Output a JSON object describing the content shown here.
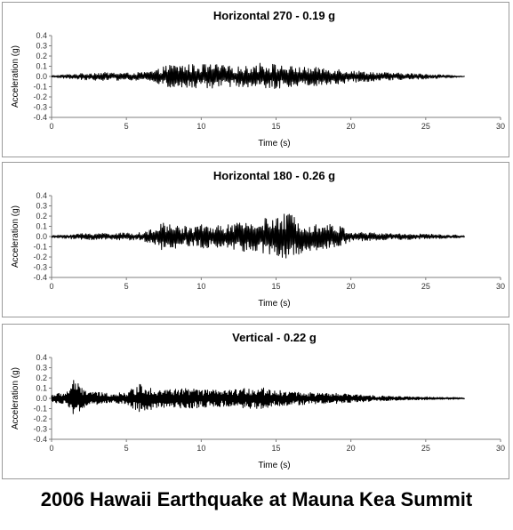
{
  "main_title": "2006 Hawaii Earthquake at Mauna Kea Summit",
  "colors": {
    "trace": "#000000",
    "axis": "#7f7f7f",
    "frame": "#9a9a9a"
  },
  "chart_data": [
    {
      "type": "line",
      "title": "Horizontal 270 - 0.19 g",
      "xlabel": "Time (s)",
      "ylabel": "Acceleration (g)",
      "xlim": [
        0,
        30
      ],
      "ylim": [
        -0.4,
        0.4
      ],
      "xticks": [
        "0",
        "5",
        "10",
        "15",
        "20",
        "25",
        "30"
      ],
      "yticks": [
        "0.4",
        "0.3",
        "0.2",
        "0.1",
        "0.0",
        "-0.1",
        "-0.2",
        "-0.3",
        "-0.4"
      ],
      "grid": false,
      "duration_s": 27.6,
      "peak_g": 0.19,
      "envelope": [
        [
          0,
          0.01
        ],
        [
          1,
          0.02
        ],
        [
          2,
          0.03
        ],
        [
          3,
          0.04
        ],
        [
          4,
          0.04
        ],
        [
          5,
          0.035
        ],
        [
          6,
          0.04
        ],
        [
          7,
          0.06
        ],
        [
          7.5,
          0.1
        ],
        [
          8,
          0.12
        ],
        [
          9,
          0.12
        ],
        [
          10,
          0.12
        ],
        [
          11,
          0.12
        ],
        [
          12,
          0.1
        ],
        [
          13,
          0.1
        ],
        [
          14,
          0.14
        ],
        [
          15,
          0.12
        ],
        [
          16,
          0.1
        ],
        [
          17,
          0.09
        ],
        [
          18,
          0.09
        ],
        [
          19,
          0.08
        ],
        [
          20,
          0.06
        ],
        [
          21,
          0.05
        ],
        [
          22,
          0.04
        ],
        [
          23,
          0.035
        ],
        [
          24,
          0.03
        ],
        [
          25,
          0.025
        ],
        [
          26,
          0.02
        ],
        [
          27,
          0.01
        ],
        [
          27.6,
          0.005
        ]
      ]
    },
    {
      "type": "line",
      "title": "Horizontal 180 - 0.26 g",
      "xlabel": "Time (s)",
      "ylabel": "Acceleration (g)",
      "xlim": [
        0,
        30
      ],
      "ylim": [
        -0.4,
        0.4
      ],
      "xticks": [
        "0",
        "5",
        "10",
        "15",
        "20",
        "25",
        "30"
      ],
      "yticks": [
        "0.4",
        "0.3",
        "0.2",
        "0.1",
        "0.0",
        "-0.1",
        "-0.2",
        "-0.3",
        "-0.4"
      ],
      "grid": false,
      "duration_s": 27.6,
      "peak_g": 0.26,
      "envelope": [
        [
          0,
          0.01
        ],
        [
          1,
          0.02
        ],
        [
          2,
          0.03
        ],
        [
          3,
          0.035
        ],
        [
          4,
          0.035
        ],
        [
          5,
          0.035
        ],
        [
          6,
          0.04
        ],
        [
          7,
          0.08
        ],
        [
          7.5,
          0.15
        ],
        [
          8,
          0.12
        ],
        [
          9,
          0.1
        ],
        [
          10,
          0.12
        ],
        [
          11,
          0.11
        ],
        [
          12,
          0.12
        ],
        [
          13,
          0.15
        ],
        [
          14,
          0.18
        ],
        [
          15,
          0.18
        ],
        [
          15.8,
          0.24
        ],
        [
          16.5,
          0.18
        ],
        [
          17,
          0.14
        ],
        [
          18,
          0.13
        ],
        [
          19,
          0.12
        ],
        [
          20,
          0.05
        ],
        [
          21,
          0.04
        ],
        [
          22,
          0.035
        ],
        [
          23,
          0.03
        ],
        [
          24,
          0.03
        ],
        [
          25,
          0.025
        ],
        [
          26,
          0.02
        ],
        [
          27,
          0.015
        ],
        [
          27.6,
          0.01
        ]
      ]
    },
    {
      "type": "line",
      "title": "Vertical - 0.22 g",
      "xlabel": "Time (s)",
      "ylabel": "Acceleration (g)",
      "xlim": [
        0,
        30
      ],
      "ylim": [
        -0.4,
        0.4
      ],
      "xticks": [
        "0",
        "5",
        "10",
        "15",
        "20",
        "25",
        "30"
      ],
      "yticks": [
        "0.4",
        "0.3",
        "0.2",
        "0.1",
        "0.0",
        "-0.1",
        "-0.2",
        "-0.3",
        "-0.4"
      ],
      "grid": false,
      "duration_s": 27.6,
      "peak_g": 0.22,
      "envelope": [
        [
          0,
          0.04
        ],
        [
          1,
          0.06
        ],
        [
          1.5,
          0.2
        ],
        [
          2,
          0.1
        ],
        [
          3,
          0.06
        ],
        [
          4,
          0.05
        ],
        [
          5,
          0.06
        ],
        [
          6,
          0.15
        ],
        [
          7,
          0.09
        ],
        [
          8,
          0.09
        ],
        [
          9,
          0.1
        ],
        [
          10,
          0.09
        ],
        [
          11,
          0.08
        ],
        [
          12,
          0.08
        ],
        [
          13,
          0.1
        ],
        [
          14,
          0.11
        ],
        [
          15,
          0.08
        ],
        [
          16,
          0.07
        ],
        [
          17,
          0.06
        ],
        [
          18,
          0.05
        ],
        [
          19,
          0.05
        ],
        [
          20,
          0.04
        ],
        [
          21,
          0.035
        ],
        [
          22,
          0.025
        ],
        [
          23,
          0.02
        ],
        [
          24,
          0.015
        ],
        [
          25,
          0.015
        ],
        [
          26,
          0.01
        ],
        [
          27,
          0.01
        ],
        [
          27.6,
          0.005
        ]
      ]
    }
  ]
}
